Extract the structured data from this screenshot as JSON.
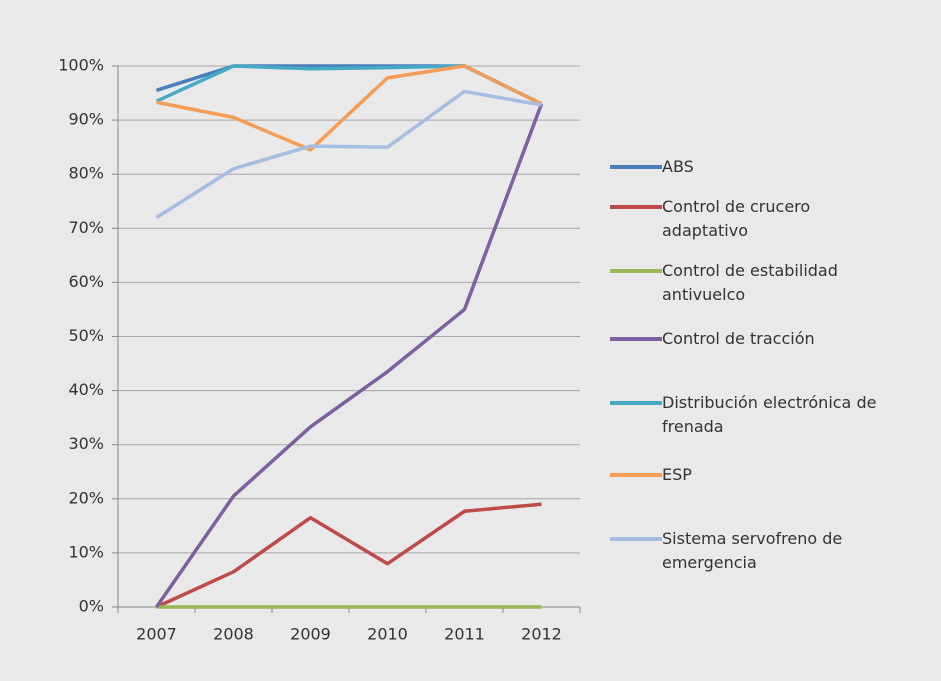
{
  "chart_data": {
    "type": "line",
    "categories": [
      "2007",
      "2008",
      "2009",
      "2010",
      "2011",
      "2012"
    ],
    "series": [
      {
        "name": "ABS",
        "color": "#4a7ebb",
        "values": [
          95.5,
          100,
          100,
          100,
          100,
          93
        ]
      },
      {
        "name": "Control de crucero adaptativo",
        "color": "#be4b48",
        "values": [
          0,
          6.5,
          16.5,
          8,
          17.7,
          19
        ]
      },
      {
        "name": "Control de estabilidad antivuelco",
        "color": "#98b954",
        "values": [
          0,
          0,
          0,
          0,
          0,
          0
        ]
      },
      {
        "name": "Control de tracción",
        "color": "#7d60a0",
        "values": [
          0,
          20.5,
          33.3,
          43.5,
          55,
          93
        ]
      },
      {
        "name": "Distribución electrónica de frenada",
        "color": "#46aac5",
        "values": [
          93.5,
          100,
          99.5,
          99.7,
          100,
          93
        ]
      },
      {
        "name": "ESP",
        "color": "#f59d56",
        "values": [
          93.3,
          90.5,
          84.5,
          97.8,
          100,
          93
        ]
      },
      {
        "name": "Sistema servofreno de emergencia",
        "color": "#a5bde0",
        "values": [
          72,
          81,
          85.2,
          85,
          95.3,
          92.8
        ]
      }
    ],
    "ylim": [
      0,
      100
    ],
    "yticks": [
      {
        "value": 0,
        "label": "0%"
      },
      {
        "value": 10,
        "label": "10%"
      },
      {
        "value": 20,
        "label": "20%"
      },
      {
        "value": 30,
        "label": "30%"
      },
      {
        "value": 40,
        "label": "40%"
      },
      {
        "value": 50,
        "label": "50%"
      },
      {
        "value": 60,
        "label": "60%"
      },
      {
        "value": 70,
        "label": "70%"
      },
      {
        "value": 80,
        "label": "80%"
      },
      {
        "value": 90,
        "label": "90%"
      },
      {
        "value": 100,
        "label": "100%"
      }
    ],
    "grid": true,
    "legend": "right"
  }
}
